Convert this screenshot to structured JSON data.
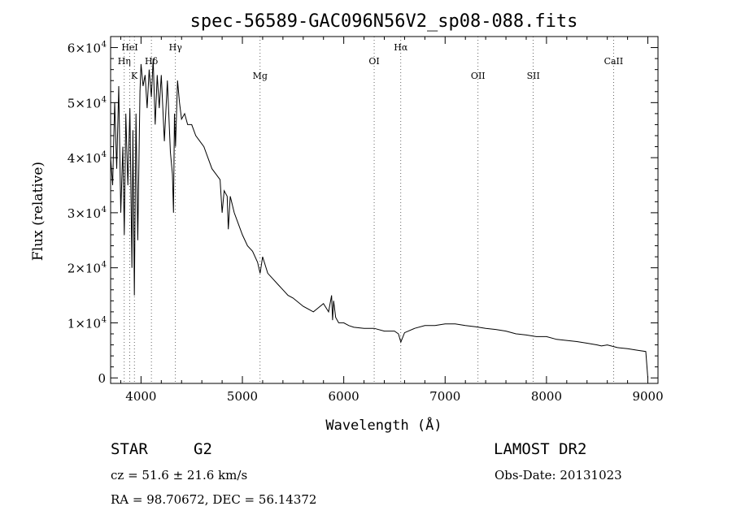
{
  "chart_data": {
    "type": "line",
    "title": "spec-56589-GAC096N56V2_sp08-088.fits",
    "xlabel": "Wavelength (Å)",
    "ylabel": "Flux (relative)",
    "xlim": [
      3700,
      9100
    ],
    "ylim": [
      -1000,
      62000
    ],
    "xticks": [
      {
        "value": 4000,
        "label": "4000"
      },
      {
        "value": 5000,
        "label": "5000"
      },
      {
        "value": 6000,
        "label": "6000"
      },
      {
        "value": 7000,
        "label": "7000"
      },
      {
        "value": 8000,
        "label": "8000"
      },
      {
        "value": 9000,
        "label": "9000"
      }
    ],
    "yticks": [
      {
        "value": 0,
        "mantissa": "0",
        "exp": ""
      },
      {
        "value": 10000,
        "mantissa": "1×10",
        "exp": "4"
      },
      {
        "value": 20000,
        "mantissa": "2×10",
        "exp": "4"
      },
      {
        "value": 30000,
        "mantissa": "3×10",
        "exp": "4"
      },
      {
        "value": 40000,
        "mantissa": "4×10",
        "exp": "4"
      },
      {
        "value": 50000,
        "mantissa": "5×10",
        "exp": "4"
      },
      {
        "value": 60000,
        "mantissa": "6×10",
        "exp": "4"
      }
    ],
    "grid": false,
    "lines": [
      {
        "label": "Hη",
        "wavelength": 3835,
        "row": 2
      },
      {
        "label": "HeI",
        "wavelength": 3889,
        "row": 1
      },
      {
        "label": "K",
        "wavelength": 3934,
        "row": 3
      },
      {
        "label": "Hδ",
        "wavelength": 4102,
        "row": 2
      },
      {
        "label": "Hγ",
        "wavelength": 4340,
        "row": 1
      },
      {
        "label": "Mg",
        "wavelength": 5175,
        "row": 3
      },
      {
        "label": "OI",
        "wavelength": 6300,
        "row": 2
      },
      {
        "label": "Hα",
        "wavelength": 6563,
        "row": 1
      },
      {
        "label": "OII",
        "wavelength": 7325,
        "row": 3
      },
      {
        "label": "SII",
        "wavelength": 7870,
        "row": 3
      },
      {
        "label": "CaII",
        "wavelength": 8662,
        "row": 2
      }
    ],
    "series": [
      {
        "x": [
          3700,
          3720,
          3740,
          3760,
          3780,
          3800,
          3820,
          3835,
          3850,
          3870,
          3890,
          3910,
          3920,
          3934,
          3950,
          3968,
          3990,
          4000,
          4020,
          4040,
          4060,
          4080,
          4102,
          4120,
          4140,
          4160,
          4180,
          4200,
          4230,
          4260,
          4290,
          4310,
          4320,
          4330,
          4340,
          4360,
          4380,
          4400,
          4430,
          4460,
          4500,
          4540,
          4580,
          4620,
          4660,
          4700,
          4740,
          4780,
          4800,
          4820,
          4850,
          4861,
          4880,
          4920,
          4960,
          5000,
          5050,
          5100,
          5150,
          5175,
          5200,
          5250,
          5300,
          5350,
          5400,
          5450,
          5500,
          5600,
          5700,
          5800,
          5850,
          5880,
          5890,
          5900,
          5920,
          5950,
          6000,
          6050,
          6100,
          6200,
          6300,
          6400,
          6500,
          6540,
          6563,
          6600,
          6700,
          6800,
          6900,
          7000,
          7100,
          7200,
          7300,
          7400,
          7500,
          7600,
          7700,
          7800,
          7900,
          8000,
          8100,
          8200,
          8300,
          8400,
          8500,
          8542,
          8600,
          8700,
          8800,
          8900,
          8980,
          9000
        ],
        "y": [
          40000,
          35000,
          50000,
          38000,
          53000,
          30000,
          42000,
          26000,
          48000,
          35000,
          49000,
          20000,
          45000,
          15000,
          48000,
          25000,
          52000,
          57000,
          53000,
          55000,
          49000,
          56000,
          51000,
          58000,
          46000,
          55000,
          49000,
          55000,
          43000,
          54000,
          41000,
          37000,
          30000,
          48000,
          42000,
          54000,
          50000,
          47000,
          48000,
          46000,
          46000,
          44000,
          43000,
          42000,
          40000,
          38000,
          37000,
          36000,
          30000,
          34000,
          33000,
          27000,
          33000,
          30000,
          28000,
          26000,
          24000,
          23000,
          21000,
          19000,
          22000,
          19000,
          18000,
          17000,
          16000,
          15000,
          14500,
          13000,
          12000,
          13500,
          12000,
          15000,
          10500,
          14000,
          11000,
          10000,
          10000,
          9500,
          9200,
          9000,
          9000,
          8500,
          8500,
          8000,
          6500,
          8200,
          9000,
          9500,
          9500,
          9800,
          9800,
          9500,
          9300,
          9000,
          8800,
          8500,
          8000,
          7800,
          7500,
          7500,
          7000,
          6800,
          6600,
          6300,
          6000,
          5800,
          6000,
          5500,
          5300,
          5000,
          4800,
          0
        ]
      }
    ]
  },
  "info": {
    "object": "STAR",
    "subclass": "G2",
    "survey": "LAMOST DR2",
    "cz": "cz = 51.6 ± 21.6 km/s",
    "obs_date": "Obs-Date: 20131023",
    "coords": "RA =  98.70672, DEC =  56.14372"
  }
}
